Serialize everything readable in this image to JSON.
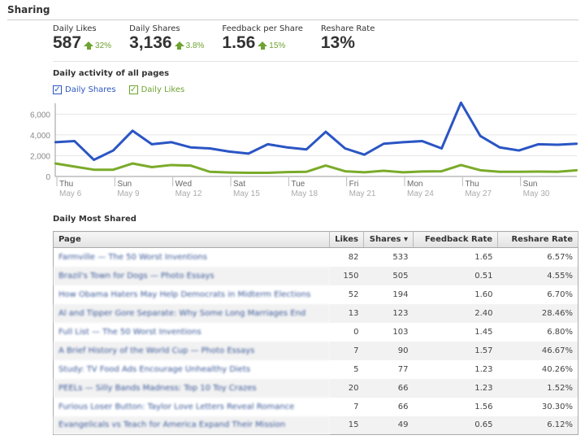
{
  "title": "Sharing",
  "stats": [
    {
      "label": "Daily Likes",
      "value": "587",
      "change": "32%"
    },
    {
      "label": "Daily Shares",
      "value": "3,136",
      "change": "3.8%"
    },
    {
      "label": "Feedback per Share",
      "value": "1.56",
      "change": "15%"
    },
    {
      "label": "Reshare Rate",
      "value": "13%"
    }
  ],
  "chart_section": "Daily activity of all pages",
  "legend": [
    {
      "label": "Daily Shares",
      "color": "#2a55c4"
    },
    {
      "label": "Daily Likes",
      "color": "#7aab2a"
    }
  ],
  "chart_data": {
    "type": "line",
    "title": "Daily activity of all pages",
    "ylim": [
      0,
      7200
    ],
    "yticks": [
      "0",
      "2,000",
      "4,000",
      "6,000"
    ],
    "ytick_values": [
      0,
      2000,
      4000,
      6000
    ],
    "xticks": [
      {
        "day": "Thu",
        "date": "May 6",
        "index": 0
      },
      {
        "day": "Sun",
        "date": "May 9",
        "index": 3
      },
      {
        "day": "Wed",
        "date": "May 12",
        "index": 6
      },
      {
        "day": "Sat",
        "date": "May 15",
        "index": 9
      },
      {
        "day": "Tue",
        "date": "May 18",
        "index": 12
      },
      {
        "day": "Fri",
        "date": "May 21",
        "index": 15
      },
      {
        "day": "Mon",
        "date": "May 24",
        "index": 18
      },
      {
        "day": "Thu",
        "date": "May 27",
        "index": 21
      },
      {
        "day": "Sun",
        "date": "May 30",
        "index": 24
      }
    ],
    "series": [
      {
        "name": "Daily Shares",
        "color": "#2a55c4",
        "values": [
          3300,
          3400,
          1600,
          2500,
          4400,
          3100,
          3300,
          2800,
          2700,
          2400,
          2200,
          3100,
          2800,
          2600,
          4300,
          2700,
          2100,
          3150,
          3300,
          3400,
          2700,
          7100,
          3900,
          2800,
          2500,
          3100,
          3050,
          3150
        ]
      },
      {
        "name": "Daily Likes",
        "color": "#7aab2a",
        "values": [
          1250,
          950,
          650,
          650,
          1250,
          900,
          1100,
          1050,
          450,
          380,
          350,
          350,
          420,
          450,
          1050,
          500,
          400,
          550,
          400,
          480,
          500,
          1100,
          600,
          450,
          450,
          470,
          450,
          600
        ]
      }
    ]
  },
  "table_section": "Daily Most Shared",
  "table": {
    "headers": [
      "Page",
      "Likes",
      "Shares ▾",
      "Feedback Rate",
      "Reshare Rate"
    ],
    "rows": [
      [
        "Farmville — The 50 Worst Inventions",
        "82",
        "533",
        "1.65",
        "6.57%"
      ],
      [
        "Brazil's Town for Dogs — Photo Essays",
        "150",
        "505",
        "0.51",
        "4.55%"
      ],
      [
        "How Obama Haters May Help Democrats in Midterm Elections",
        "52",
        "194",
        "1.60",
        "6.70%"
      ],
      [
        "Al and Tipper Gore Separate: Why Some Long Marriages End",
        "13",
        "123",
        "2.40",
        "28.46%"
      ],
      [
        "Full List — The 50 Worst Inventions",
        "0",
        "103",
        "1.45",
        "6.80%"
      ],
      [
        "A Brief History of the World Cup — Photo Essays",
        "7",
        "90",
        "1.57",
        "46.67%"
      ],
      [
        "Study: TV Food Ads Encourage Unhealthy Diets",
        "5",
        "77",
        "1.23",
        "40.26%"
      ],
      [
        "PEELs — Silly Bands Madness: Top 10 Toy Crazes",
        "20",
        "66",
        "1.23",
        "1.52%"
      ],
      [
        "Furious Loser Button: Taylor Love Letters Reveal Romance",
        "7",
        "66",
        "1.56",
        "30.30%"
      ],
      [
        "Evangelicals vs Teach for America Expand Their Mission",
        "15",
        "49",
        "0.65",
        "6.12%"
      ]
    ]
  }
}
